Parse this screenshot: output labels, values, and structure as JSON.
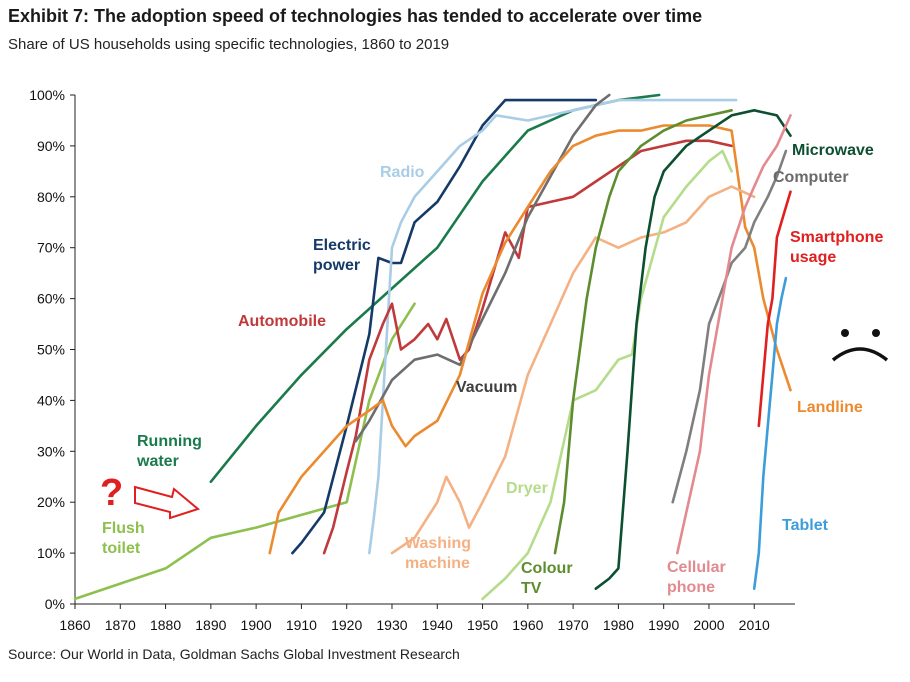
{
  "header": {
    "title": "Exhibit 7: The adoption speed of technologies has tended to accelerate over time",
    "subtitle": "Share of US households using specific technologies, 1860 to 2019",
    "source": "Source: Our World in Data, Goldman Sachs Global Investment Research"
  },
  "annotations": {
    "question_mark": "?",
    "sad_face": ":("
  },
  "chart_data": {
    "type": "line",
    "title": "Exhibit 7: The adoption speed of technologies has tended to accelerate over time",
    "subtitle": "Share of US households using specific technologies, 1860 to 2019",
    "xlabel": "",
    "ylabel": "",
    "xlim": [
      1860,
      2019
    ],
    "ylim": [
      0,
      100
    ],
    "x_ticks": [
      1860,
      1870,
      1880,
      1890,
      1900,
      1910,
      1920,
      1930,
      1940,
      1950,
      1960,
      1970,
      1980,
      1990,
      2000,
      2010
    ],
    "y_ticks": [
      0,
      10,
      20,
      30,
      40,
      50,
      60,
      70,
      80,
      90,
      100
    ],
    "y_tick_labels": [
      "0%",
      "10%",
      "20%",
      "30%",
      "40%",
      "50%",
      "60%",
      "70%",
      "80%",
      "90%",
      "100%"
    ],
    "grid": false,
    "legend": "none (direct labels)",
    "series": [
      {
        "name": "Flush toilet",
        "label": "Flush\ntoilet",
        "color": "#8dc04e",
        "points": [
          [
            1860,
            1
          ],
          [
            1870,
            4
          ],
          [
            1880,
            7
          ],
          [
            1890,
            13
          ],
          [
            1900,
            15
          ],
          [
            1910,
            17.5
          ],
          [
            1920,
            20
          ],
          [
            1925,
            40
          ],
          [
            1930,
            52
          ],
          [
            1935,
            59
          ]
        ]
      },
      {
        "name": "Running water",
        "label": "Running\nwater",
        "color": "#1a7a4b",
        "points": [
          [
            1890,
            24
          ],
          [
            1900,
            35
          ],
          [
            1910,
            45
          ],
          [
            1920,
            54
          ],
          [
            1930,
            62
          ],
          [
            1940,
            70
          ],
          [
            1950,
            83
          ],
          [
            1960,
            93
          ],
          [
            1970,
            97
          ],
          [
            1980,
            99
          ],
          [
            1989,
            100
          ]
        ]
      },
      {
        "name": "Electric power",
        "label": "Electric\npower",
        "color": "#163a68",
        "points": [
          [
            1908,
            10
          ],
          [
            1910,
            12
          ],
          [
            1915,
            18
          ],
          [
            1920,
            35
          ],
          [
            1925,
            53
          ],
          [
            1927,
            68
          ],
          [
            1930,
            67
          ],
          [
            1932,
            67
          ],
          [
            1935,
            75
          ],
          [
            1940,
            79
          ],
          [
            1945,
            86
          ],
          [
            1950,
            94
          ],
          [
            1955,
            99
          ],
          [
            1960,
            99
          ],
          [
            1965,
            99
          ],
          [
            1970,
            99
          ],
          [
            1975,
            99
          ]
        ]
      },
      {
        "name": "Radio",
        "label": "Radio",
        "color": "#a9cde6",
        "points": [
          [
            1925,
            10
          ],
          [
            1926,
            17
          ],
          [
            1927,
            25
          ],
          [
            1928,
            40
          ],
          [
            1930,
            70
          ],
          [
            1932,
            75
          ],
          [
            1935,
            80
          ],
          [
            1940,
            85
          ],
          [
            1945,
            90
          ],
          [
            1950,
            93
          ],
          [
            1953,
            96
          ],
          [
            1960,
            95
          ],
          [
            1965,
            96
          ],
          [
            1970,
            97
          ],
          [
            1980,
            99
          ],
          [
            2006,
            99
          ]
        ]
      },
      {
        "name": "Automobile",
        "label": "Automobile",
        "color": "#c0393b",
        "points": [
          [
            1915,
            10
          ],
          [
            1917,
            15
          ],
          [
            1920,
            26
          ],
          [
            1922,
            33
          ],
          [
            1925,
            48
          ],
          [
            1928,
            55
          ],
          [
            1930,
            59
          ],
          [
            1932,
            50
          ],
          [
            1935,
            52
          ],
          [
            1938,
            55
          ],
          [
            1940,
            52
          ],
          [
            1942,
            56
          ],
          [
            1945,
            48
          ],
          [
            1947,
            50
          ],
          [
            1950,
            58
          ],
          [
            1955,
            73
          ],
          [
            1958,
            68
          ],
          [
            1960,
            78
          ],
          [
            1965,
            79
          ],
          [
            1970,
            80
          ],
          [
            1975,
            83
          ],
          [
            1980,
            86
          ],
          [
            1985,
            89
          ],
          [
            1990,
            90
          ],
          [
            1995,
            91
          ],
          [
            2000,
            91
          ],
          [
            2005,
            90
          ]
        ]
      },
      {
        "name": "Vacuum",
        "label": "Vacuum",
        "color": "#6e6e6e",
        "points": [
          [
            1922,
            32
          ],
          [
            1925,
            36
          ],
          [
            1930,
            44
          ],
          [
            1935,
            48
          ],
          [
            1940,
            49
          ],
          [
            1945,
            47
          ],
          [
            1950,
            56
          ],
          [
            1955,
            65
          ],
          [
            1960,
            76
          ],
          [
            1965,
            84
          ],
          [
            1970,
            92
          ],
          [
            1975,
            98
          ],
          [
            1978,
            100
          ]
        ]
      },
      {
        "name": "Telephone/Landline",
        "label": "Landline",
        "color": "#ec8a2f",
        "points": [
          [
            1903,
            10
          ],
          [
            1905,
            18
          ],
          [
            1910,
            25
          ],
          [
            1915,
            30
          ],
          [
            1920,
            35
          ],
          [
            1925,
            38
          ],
          [
            1928,
            40
          ],
          [
            1930,
            35
          ],
          [
            1933,
            31
          ],
          [
            1935,
            33
          ],
          [
            1940,
            36
          ],
          [
            1945,
            45
          ],
          [
            1950,
            61
          ],
          [
            1955,
            71
          ],
          [
            1960,
            78
          ],
          [
            1965,
            85
          ],
          [
            1970,
            90
          ],
          [
            1975,
            92
          ],
          [
            1980,
            93
          ],
          [
            1985,
            93
          ],
          [
            1990,
            94
          ],
          [
            1995,
            94
          ],
          [
            2000,
            94
          ],
          [
            2005,
            93
          ],
          [
            2008,
            74
          ],
          [
            2010,
            70
          ],
          [
            2012,
            60
          ],
          [
            2015,
            50
          ],
          [
            2018,
            42
          ]
        ]
      },
      {
        "name": "Washing machine",
        "label": "Washing\nmachine",
        "color": "#f4b183",
        "points": [
          [
            1930,
            10
          ],
          [
            1935,
            13
          ],
          [
            1940,
            20
          ],
          [
            1942,
            25
          ],
          [
            1945,
            20
          ],
          [
            1947,
            15
          ],
          [
            1950,
            20
          ],
          [
            1955,
            29
          ],
          [
            1960,
            45
          ],
          [
            1965,
            55
          ],
          [
            1970,
            65
          ],
          [
            1975,
            72
          ],
          [
            1980,
            70
          ],
          [
            1985,
            72
          ],
          [
            1990,
            73
          ],
          [
            1995,
            75
          ],
          [
            2000,
            80
          ],
          [
            2005,
            82
          ],
          [
            2010,
            80
          ]
        ]
      },
      {
        "name": "Dryer",
        "label": "Dryer",
        "color": "#b5dc8a",
        "points": [
          [
            1950,
            1
          ],
          [
            1955,
            5
          ],
          [
            1960,
            10
          ],
          [
            1965,
            20
          ],
          [
            1970,
            40
          ],
          [
            1975,
            42
          ],
          [
            1980,
            48
          ],
          [
            1983,
            49
          ],
          [
            1985,
            60
          ],
          [
            1990,
            76
          ],
          [
            1995,
            82
          ],
          [
            2000,
            87
          ],
          [
            2003,
            89
          ],
          [
            2005,
            85
          ]
        ]
      },
      {
        "name": "Colour TV",
        "label": "Colour\nTV",
        "color": "#5d8d2f",
        "points": [
          [
            1966,
            10
          ],
          [
            1968,
            20
          ],
          [
            1970,
            40
          ],
          [
            1973,
            60
          ],
          [
            1975,
            70
          ],
          [
            1978,
            80
          ],
          [
            1980,
            85
          ],
          [
            1985,
            90
          ],
          [
            1990,
            93
          ],
          [
            1995,
            95
          ],
          [
            2000,
            96
          ],
          [
            2005,
            97
          ]
        ]
      },
      {
        "name": "Microwave",
        "label": "Microwave",
        "color": "#0d4f31",
        "points": [
          [
            1975,
            3
          ],
          [
            1978,
            5
          ],
          [
            1980,
            7
          ],
          [
            1982,
            30
          ],
          [
            1984,
            55
          ],
          [
            1986,
            70
          ],
          [
            1988,
            80
          ],
          [
            1990,
            85
          ],
          [
            1995,
            90
          ],
          [
            2000,
            93
          ],
          [
            2005,
            96
          ],
          [
            2010,
            97
          ],
          [
            2015,
            96
          ],
          [
            2018,
            92
          ]
        ]
      },
      {
        "name": "Computer",
        "label": "Computer",
        "color": "#7f7f7f",
        "points": [
          [
            1992,
            20
          ],
          [
            1995,
            30
          ],
          [
            1998,
            42
          ],
          [
            2000,
            55
          ],
          [
            2003,
            62
          ],
          [
            2005,
            67
          ],
          [
            2008,
            70
          ],
          [
            2010,
            75
          ],
          [
            2013,
            80
          ],
          [
            2015,
            84
          ],
          [
            2017,
            89
          ]
        ]
      },
      {
        "name": "Cellular phone",
        "label": "Cellular\nphone",
        "color": "#e28a8f",
        "points": [
          [
            1993,
            10
          ],
          [
            1995,
            18
          ],
          [
            1998,
            30
          ],
          [
            2000,
            45
          ],
          [
            2003,
            60
          ],
          [
            2005,
            70
          ],
          [
            2008,
            78
          ],
          [
            2010,
            82
          ],
          [
            2012,
            86
          ],
          [
            2015,
            90
          ],
          [
            2018,
            96
          ]
        ]
      },
      {
        "name": "Smartphone usage",
        "label": "Smartphone\nusage",
        "color": "#e02020",
        "points": [
          [
            2011,
            35
          ],
          [
            2012,
            45
          ],
          [
            2013,
            55
          ],
          [
            2014,
            60
          ],
          [
            2015,
            72
          ],
          [
            2016,
            75
          ],
          [
            2017,
            78
          ],
          [
            2018,
            81
          ]
        ]
      },
      {
        "name": "Tablet",
        "label": "Tablet",
        "color": "#3d9ddb",
        "points": [
          [
            2010,
            3
          ],
          [
            2011,
            10
          ],
          [
            2012,
            25
          ],
          [
            2013,
            35
          ],
          [
            2014,
            45
          ],
          [
            2015,
            55
          ],
          [
            2016,
            60
          ],
          [
            2017,
            64
          ]
        ]
      }
    ]
  }
}
